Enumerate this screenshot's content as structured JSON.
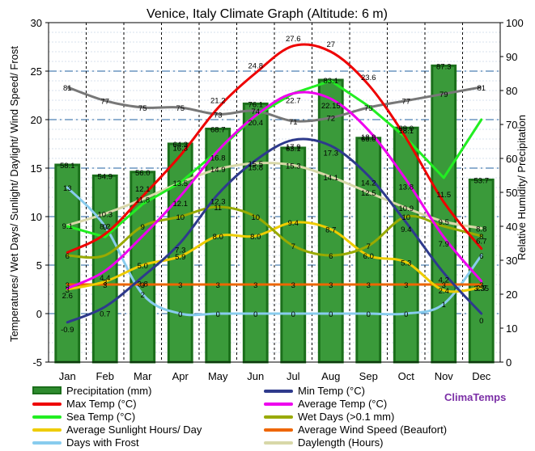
{
  "chart_data": {
    "type": "bar+line",
    "title": "Venice, Italy Climate Graph (Altitude: 6 m)",
    "ylabel_left": "Temperatures/ Wet Days/ Sunlight/ Daylight/ Wind Speed/ Frost",
    "ylabel_right": "Relative Humidity/ Precipitation",
    "ylim_left": [
      -5,
      30
    ],
    "ylim_right": [
      0,
      100
    ],
    "yticks_left": [
      "-5",
      "0",
      "5",
      "10",
      "15",
      "20",
      "25",
      "30"
    ],
    "yticks_right": [
      "0",
      "10",
      "20",
      "30",
      "40",
      "50",
      "60",
      "70",
      "80",
      "90",
      "100"
    ],
    "categories": [
      "Jan",
      "Feb",
      "Mar",
      "Apr",
      "May",
      "Jun",
      "Jul",
      "Aug",
      "Sep",
      "Oct",
      "Nov",
      "Dec"
    ],
    "precipitation": {
      "name": "Precipitation (mm)",
      "axis": "right",
      "color": "#2e8b2e",
      "values": [
        58.1,
        54.9,
        56.0,
        64.3,
        68.7,
        76.1,
        63.1,
        83.1,
        66.0,
        69.0,
        87.3,
        53.7
      ]
    },
    "humidity": {
      "axis": "right",
      "color": "#777777",
      "values": [
        81,
        77,
        75,
        75,
        73,
        74,
        71,
        72,
        75,
        77,
        79,
        81
      ]
    },
    "series": [
      {
        "name": "Max Temp (°C)",
        "color": "#ee0000",
        "values": [
          6.3,
          8.2,
          12.1,
          16.3,
          21.2,
          24.8,
          27.6,
          27.0,
          23.6,
          18.1,
          11.5,
          6.7
        ]
      },
      {
        "name": "Min Temp (°C)",
        "color": "#2e3a8c",
        "values": [
          -0.9,
          0.7,
          3.8,
          7.3,
          12.3,
          15.8,
          17.9,
          17.3,
          14.2,
          9.4,
          4.2,
          0.0
        ]
      },
      {
        "name": "Average Temp (°C)",
        "color": "#ee00ee",
        "values": [
          2.6,
          4.4,
          8.0,
          12.1,
          16.8,
          20.4,
          22.7,
          22.15,
          18.9,
          13.8,
          7.9,
          3.35
        ]
      },
      {
        "name": "Sea Temp (°C)",
        "color": "#22ee22",
        "values": [
          9.0,
          7.9,
          11.3,
          13.5,
          16.8,
          20.4,
          22.7,
          24.0,
          21.4,
          18.1,
          14.0,
          20.0
        ]
      },
      {
        "name": "Wet Days (>0.1 mm)",
        "color": "#99aa00",
        "values": [
          6,
          6,
          9,
          10,
          11,
          10,
          7,
          6,
          7,
          10,
          9,
          8
        ]
      },
      {
        "name": "Average Wind Speed (Beaufort)",
        "color": "#ee6600",
        "values": [
          3,
          3,
          3,
          3,
          3,
          3,
          3,
          3,
          3,
          3,
          3,
          3
        ]
      },
      {
        "name": "Average Sunlight Hours/ Day",
        "color": "#eecc00",
        "values": [
          2.5,
          3.3,
          5.0,
          5.9,
          8.0,
          8.0,
          9.4,
          8.7,
          6.0,
          5.3,
          2.4,
          2.7
        ]
      },
      {
        "name": "Daylength (Hours)",
        "color": "#d8d8a8",
        "values": [
          9.1,
          10.3,
          11.8,
          13.5,
          14.9,
          15.5,
          15.3,
          14.1,
          12.5,
          10.9,
          9.5,
          8.8
        ]
      },
      {
        "name": "Days with Frost",
        "color": "#88ccee",
        "values": [
          13,
          9,
          2,
          0,
          0,
          0,
          0,
          0,
          0,
          0,
          1,
          6
        ]
      }
    ],
    "labels": [
      {
        "series": "Max Temp (°C)",
        "texts": [
          "",
          "8.2",
          "12.1",
          "16.3",
          "21.2",
          "24.8",
          "27.6",
          "27",
          "23.6",
          "18.1",
          "11.5",
          "6.7"
        ]
      },
      {
        "series": "Min Temp (°C)",
        "texts": [
          "-0.9",
          "0.7",
          "3.8",
          "7.3",
          "12.3",
          "15.8",
          "17.9",
          "17.3",
          "14.2",
          "9.4",
          "4.2",
          "0"
        ]
      },
      {
        "series": "Average Temp (°C)",
        "texts": [
          "2.6",
          "4.4",
          "",
          "12.1",
          "16.8",
          "20.4",
          "22.7",
          "22.15",
          "18.9",
          "13.8",
          "7.9",
          "3.35"
        ]
      },
      {
        "series": "Sea Temp (°C)",
        "texts": [
          "",
          "",
          "",
          "",
          "",
          "",
          "",
          "",
          "",
          "",
          "",
          ""
        ]
      },
      {
        "series": "Wet Days (>0.1 mm)",
        "texts": [
          "6",
          "",
          "9",
          "10",
          "11",
          "10",
          "7",
          "6",
          "7",
          "10",
          "",
          "8"
        ]
      },
      {
        "series": "Average Wind Speed (Beaufort)",
        "texts": [
          "3",
          "3",
          "3",
          "3",
          "3",
          "3",
          "3",
          "3",
          "3",
          "3",
          "3",
          "3"
        ]
      },
      {
        "series": "Average Sunlight Hours/ Day",
        "texts": [
          "3",
          "3",
          "5.0",
          "5.9",
          "8.0",
          "8.0",
          "9.4",
          "8.7",
          "6.0",
          "5.3",
          "2.4",
          "2.7"
        ]
      },
      {
        "series": "Daylength (Hours)",
        "texts": [
          "9.1",
          "10.3",
          "11.8",
          "13.5",
          "14.9",
          "15.5",
          "15.3",
          "14.1",
          "12.5",
          "10.9",
          "9.5",
          "8.8"
        ]
      },
      {
        "series": "Days with Frost",
        "texts": [
          "13",
          "9",
          "2",
          "0",
          "0",
          "0",
          "0",
          "0",
          "0",
          "0",
          "1",
          "6"
        ]
      },
      {
        "series": "Precipitation (mm)",
        "texts": [
          "58.1",
          "54.9",
          "56.0",
          "64.3",
          "68.7",
          "76.1",
          "63.1",
          "83.1",
          "66.0",
          "69.0",
          "87.3",
          "53.7"
        ]
      },
      {
        "series": "Relative Humidity",
        "texts": [
          "81",
          "77",
          "75",
          "75",
          "73",
          "74",
          "71",
          "72",
          "75",
          "77",
          "79",
          "81"
        ]
      }
    ],
    "grid": true,
    "legend_position": "bottom"
  },
  "legend": {
    "items": [
      {
        "label": "Precipitation (mm)",
        "color": "#2e8b2e",
        "kind": "bar"
      },
      {
        "label": "Min Temp (°C)",
        "color": "#2e3a8c",
        "kind": "line"
      },
      {
        "label": "Max Temp (°C)",
        "color": "#ee0000",
        "kind": "line"
      },
      {
        "label": "Average Temp (°C)",
        "color": "#ee00ee",
        "kind": "line"
      },
      {
        "label": "Sea Temp (°C)",
        "color": "#22ee22",
        "kind": "line"
      },
      {
        "label": "Wet Days (>0.1 mm)",
        "color": "#99aa00",
        "kind": "line"
      },
      {
        "label": "Average Sunlight Hours/ Day",
        "color": "#eecc00",
        "kind": "line"
      },
      {
        "label": "Average Wind Speed (Beaufort)",
        "color": "#ee6600",
        "kind": "line"
      },
      {
        "label": "Days with Frost",
        "color": "#88ccee",
        "kind": "line"
      },
      {
        "label": "Daylength (Hours)",
        "color": "#d8d8a8",
        "kind": "line"
      }
    ]
  },
  "brand": "ClimaTemps"
}
